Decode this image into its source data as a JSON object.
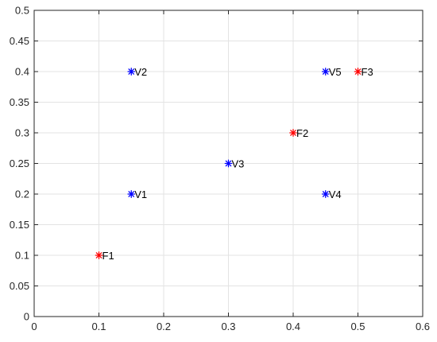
{
  "chart_data": {
    "type": "scatter",
    "marker": "asterisk",
    "grid": true,
    "xlim": [
      0,
      0.6
    ],
    "ylim": [
      0,
      0.5
    ],
    "xticks": [
      0,
      0.1,
      0.2,
      0.3,
      0.4,
      0.5,
      0.6
    ],
    "xtick_labels": [
      "0",
      "0.1",
      "0.2",
      "0.3",
      "0.4",
      "0.5",
      "0.6"
    ],
    "yticks": [
      0,
      0.05,
      0.1,
      0.15,
      0.2,
      0.25,
      0.3,
      0.35,
      0.4,
      0.45,
      0.5
    ],
    "ytick_labels": [
      "0",
      "0.05",
      "0.1",
      "0.15",
      "0.2",
      "0.25",
      "0.3",
      "0.35",
      "0.4",
      "0.45",
      "0.5"
    ],
    "series": [
      {
        "color": "#ff0000",
        "points": [
          {
            "label": "F1",
            "x": 0.1,
            "y": 0.1
          },
          {
            "label": "F2",
            "x": 0.4,
            "y": 0.3
          },
          {
            "label": "F3",
            "x": 0.5,
            "y": 0.4
          }
        ]
      },
      {
        "color": "#0000ff",
        "points": [
          {
            "label": "V1",
            "x": 0.15,
            "y": 0.2
          },
          {
            "label": "V2",
            "x": 0.15,
            "y": 0.4
          },
          {
            "label": "V3",
            "x": 0.3,
            "y": 0.25
          },
          {
            "label": "V4",
            "x": 0.45,
            "y": 0.2
          },
          {
            "label": "V5",
            "x": 0.45,
            "y": 0.4
          }
        ]
      }
    ]
  }
}
